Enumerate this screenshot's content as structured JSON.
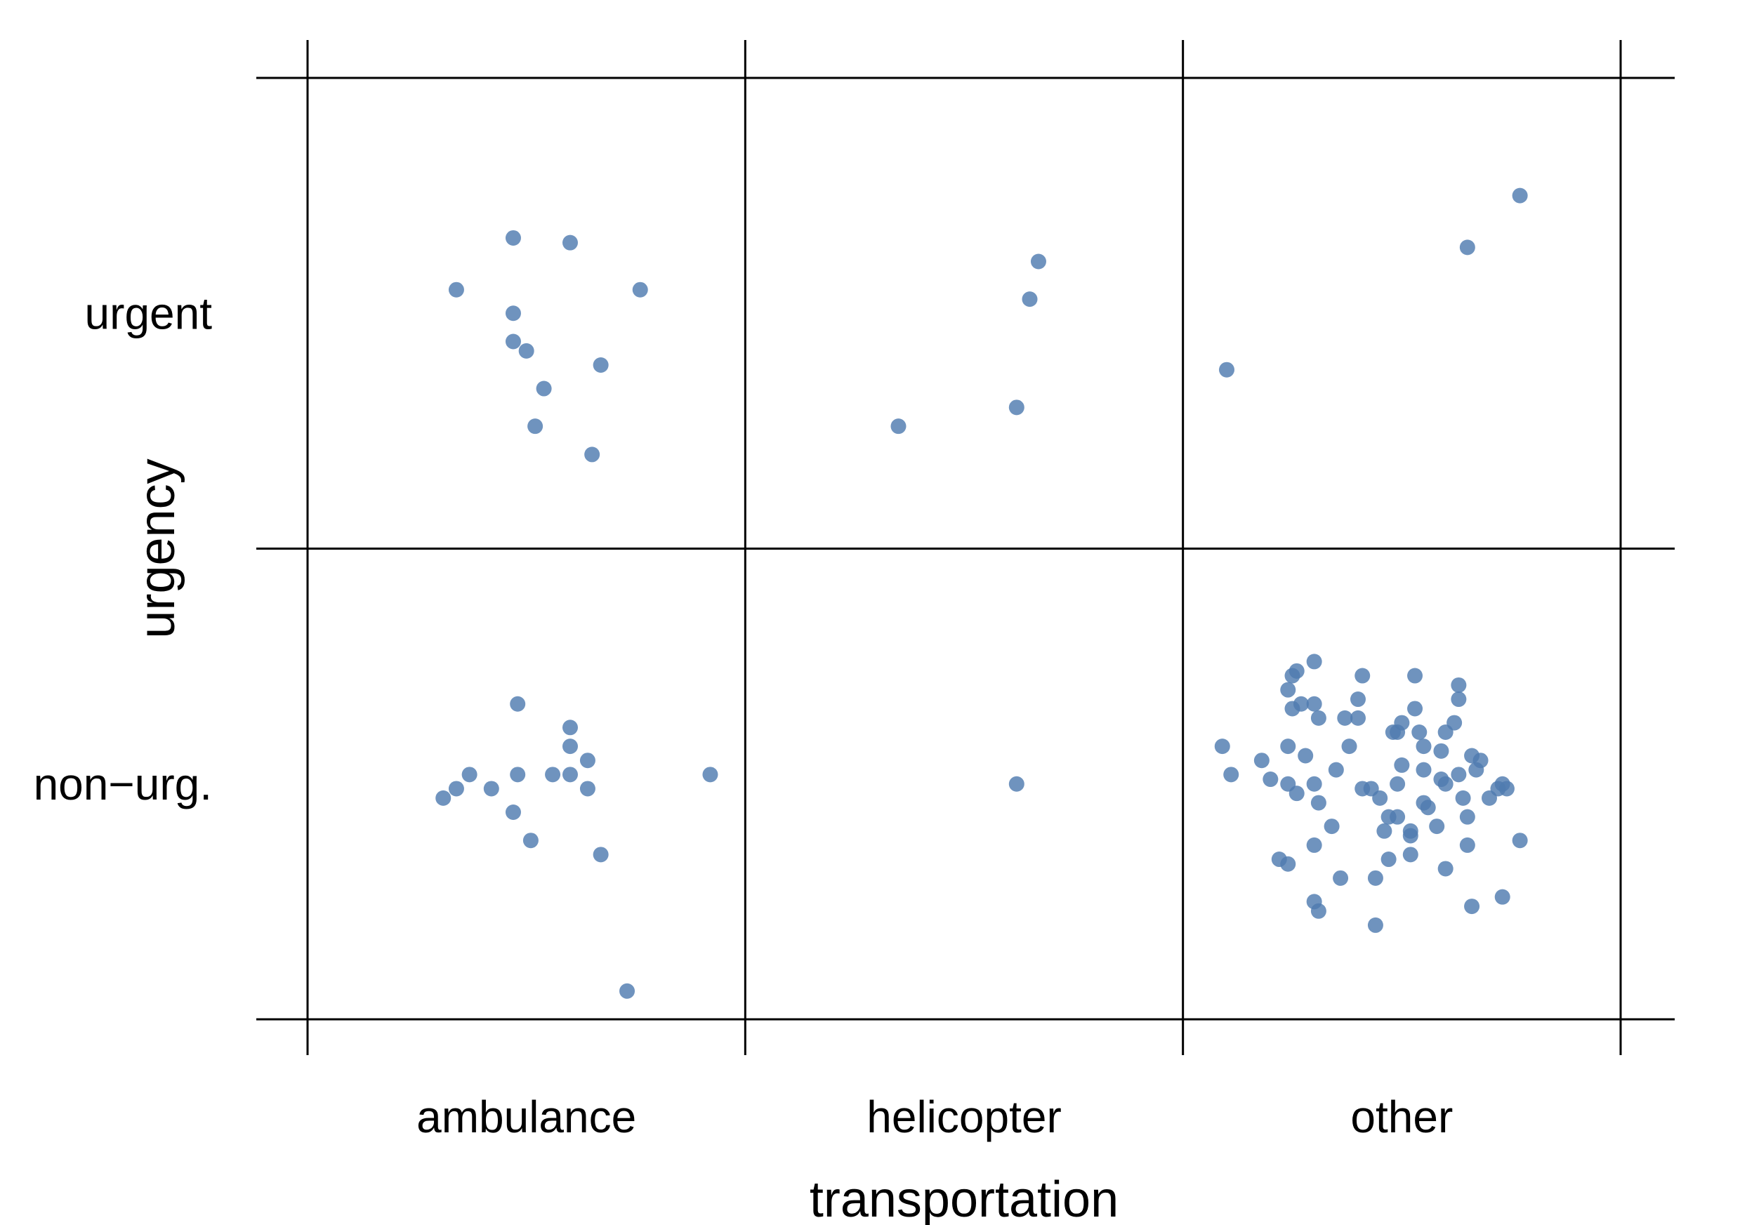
{
  "chart_data": {
    "type": "scatter",
    "subtype": "jittered categorical scatter (mosaic grid)",
    "xlabel": "transportation",
    "ylabel": "urgency",
    "x_categories": [
      "ambulance",
      "helicopter",
      "other"
    ],
    "y_categories": [
      "urgent",
      "non−urg."
    ],
    "point_color": "#4f7bb0",
    "grid": true,
    "series": [
      {
        "x_category": "ambulance",
        "y_category": "urgent",
        "count": 11,
        "points": [
          [
            -0.16,
            0.05
          ],
          [
            -0.03,
            0.16
          ],
          [
            -0.03,
            0.0
          ],
          [
            0.1,
            0.15
          ],
          [
            0.26,
            0.05
          ],
          [
            -0.03,
            -0.06
          ],
          [
            0.0,
            -0.08
          ],
          [
            0.17,
            -0.11
          ],
          [
            0.04,
            -0.16
          ],
          [
            0.02,
            -0.24
          ],
          [
            0.15,
            -0.3
          ]
        ]
      },
      {
        "x_category": "helicopter",
        "y_category": "urgent",
        "count": 4,
        "points": [
          [
            0.17,
            0.11
          ],
          [
            0.15,
            0.03
          ],
          [
            0.12,
            -0.2
          ],
          [
            -0.15,
            -0.24
          ]
        ]
      },
      {
        "x_category": "other",
        "y_category": "urgent",
        "count": 3,
        "points": [
          [
            0.27,
            0.25
          ],
          [
            0.15,
            0.14
          ],
          [
            -0.4,
            -0.12
          ]
        ]
      },
      {
        "x_category": "ambulance",
        "y_category": "non−urg.",
        "count": 17,
        "points": [
          [
            -0.02,
            0.17
          ],
          [
            0.1,
            0.12
          ],
          [
            0.1,
            0.08
          ],
          [
            0.14,
            0.05
          ],
          [
            -0.02,
            0.02
          ],
          [
            0.06,
            0.02
          ],
          [
            0.1,
            0.02
          ],
          [
            -0.13,
            0.02
          ],
          [
            -0.16,
            -0.01
          ],
          [
            -0.08,
            -0.01
          ],
          [
            0.14,
            -0.01
          ],
          [
            -0.19,
            -0.03
          ],
          [
            -0.03,
            -0.06
          ],
          [
            0.01,
            -0.12
          ],
          [
            0.17,
            -0.15
          ],
          [
            0.23,
            -0.44
          ],
          [
            0.42,
            0.02
          ]
        ]
      },
      {
        "x_category": "helicopter",
        "y_category": "non−urg.",
        "count": 1,
        "points": [
          [
            0.12,
            0.0
          ]
        ]
      },
      {
        "x_category": "other",
        "y_category": "non−urg.",
        "count": 78,
        "points": [
          [
            -0.2,
            0.26
          ],
          [
            -0.24,
            0.24
          ],
          [
            -0.25,
            0.23
          ],
          [
            -0.09,
            0.23
          ],
          [
            0.03,
            0.23
          ],
          [
            0.13,
            0.21
          ],
          [
            -0.26,
            0.2
          ],
          [
            0.13,
            0.18
          ],
          [
            -0.23,
            0.17
          ],
          [
            -0.2,
            0.17
          ],
          [
            -0.25,
            0.16
          ],
          [
            0.03,
            0.16
          ],
          [
            -0.19,
            0.14
          ],
          [
            -0.13,
            0.14
          ],
          [
            -0.1,
            0.14
          ],
          [
            0.0,
            0.13
          ],
          [
            -0.02,
            0.11
          ],
          [
            -0.01,
            0.11
          ],
          [
            0.04,
            0.11
          ],
          [
            -0.12,
            0.08
          ],
          [
            0.05,
            0.08
          ],
          [
            0.1,
            0.11
          ],
          [
            -0.26,
            0.08
          ],
          [
            0.09,
            0.07
          ],
          [
            -0.41,
            0.08
          ],
          [
            -0.32,
            0.05
          ],
          [
            0.16,
            0.06
          ],
          [
            0.17,
            0.03
          ],
          [
            -0.39,
            0.02
          ],
          [
            -0.26,
            0.0
          ],
          [
            -0.2,
            0.0
          ],
          [
            -0.01,
            0.0
          ],
          [
            0.1,
            0.0
          ],
          [
            0.13,
            0.02
          ],
          [
            0.09,
            0.01
          ],
          [
            0.23,
            0.0
          ],
          [
            0.22,
            -0.01
          ],
          [
            0.24,
            -0.01
          ],
          [
            -0.09,
            -0.01
          ],
          [
            -0.07,
            -0.01
          ],
          [
            -0.24,
            -0.02
          ],
          [
            -0.19,
            -0.04
          ],
          [
            0.05,
            -0.04
          ],
          [
            -0.03,
            -0.07
          ],
          [
            -0.01,
            -0.07
          ],
          [
            0.08,
            -0.09
          ],
          [
            0.15,
            -0.07
          ],
          [
            0.02,
            -0.1
          ],
          [
            -0.04,
            -0.1
          ],
          [
            0.02,
            -0.11
          ],
          [
            0.15,
            -0.13
          ],
          [
            0.27,
            -0.12
          ],
          [
            -0.2,
            -0.13
          ],
          [
            -0.28,
            -0.16
          ],
          [
            -0.26,
            -0.17
          ],
          [
            -0.03,
            -0.16
          ],
          [
            0.02,
            -0.15
          ],
          [
            -0.14,
            -0.2
          ],
          [
            -0.06,
            -0.2
          ],
          [
            0.1,
            -0.18
          ],
          [
            -0.2,
            -0.25
          ],
          [
            -0.19,
            -0.27
          ],
          [
            0.16,
            -0.26
          ],
          [
            0.23,
            -0.24
          ],
          [
            -0.06,
            -0.3
          ],
          [
            -0.22,
            0.06
          ],
          [
            0.0,
            0.04
          ],
          [
            0.05,
            0.03
          ],
          [
            -0.15,
            0.03
          ],
          [
            0.18,
            0.05
          ],
          [
            -0.3,
            0.01
          ],
          [
            -0.05,
            -0.03
          ],
          [
            0.14,
            -0.03
          ],
          [
            0.06,
            -0.05
          ],
          [
            -0.16,
            -0.09
          ],
          [
            0.2,
            -0.03
          ],
          [
            0.12,
            0.13
          ],
          [
            -0.1,
            0.18
          ]
        ]
      }
    ]
  }
}
